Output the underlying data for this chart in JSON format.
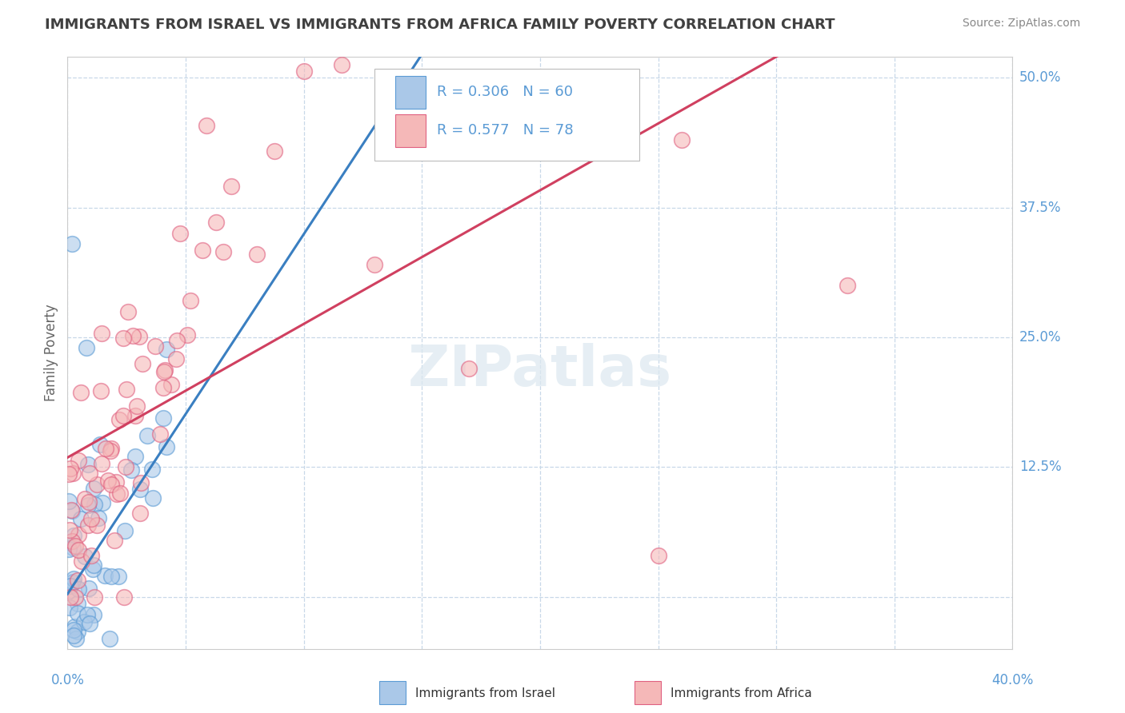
{
  "title": "IMMIGRANTS FROM ISRAEL VS IMMIGRANTS FROM AFRICA FAMILY POVERTY CORRELATION CHART",
  "source": "Source: ZipAtlas.com",
  "ylabel": "Family Poverty",
  "xlim": [
    0.0,
    0.4
  ],
  "ylim": [
    -0.05,
    0.52
  ],
  "yticks": [
    0.0,
    0.125,
    0.25,
    0.375,
    0.5
  ],
  "ytick_labels": [
    "",
    "12.5%",
    "25.0%",
    "37.5%",
    "50.0%"
  ],
  "legend_r1": "R = 0.306",
  "legend_n1": "N = 60",
  "legend_r2": "R = 0.577",
  "legend_n2": "N = 78",
  "color_israel_fill": "#aac8e8",
  "color_israel_edge": "#5b9bd5",
  "color_africa_fill": "#f5b8b8",
  "color_africa_edge": "#e06080",
  "color_trend_israel": "#3a7fc1",
  "color_trend_africa": "#d04060",
  "color_axis_labels": "#5b9bd5",
  "color_title": "#404040",
  "background_color": "#ffffff",
  "grid_color": "#c8d8e8"
}
